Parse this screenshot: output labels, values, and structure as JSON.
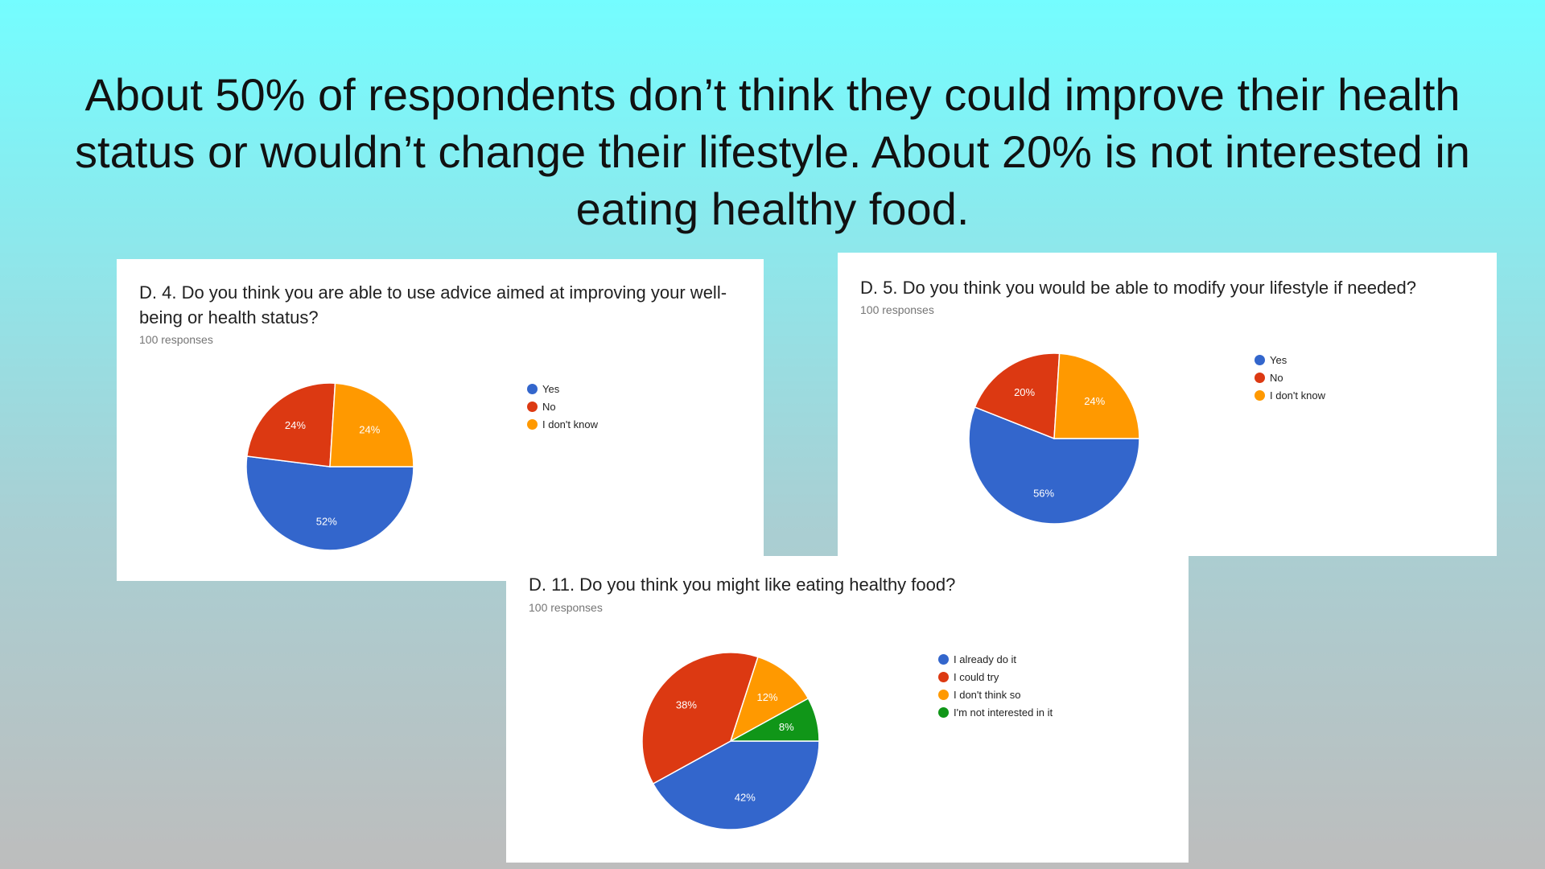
{
  "headline": "About 50% of respondents don’t think they could improve their health status or wouldn’t change their lifestyle. About 20% is not interested in eating healthy food.",
  "chart_data": [
    {
      "type": "pie",
      "title": "D. 4. Do you think you are able to use advice aimed at improving your well-being or health status?",
      "subtitle": "100 responses",
      "categories": [
        "Yes",
        "No",
        "I don't know"
      ],
      "values": [
        52,
        24,
        24
      ],
      "value_labels": [
        "52%",
        "24%",
        "24%"
      ],
      "colors": [
        "#3366cc",
        "#dc3912",
        "#ff9900"
      ],
      "legend": "right"
    },
    {
      "type": "pie",
      "title": "D. 5. Do you think you would be able to modify your lifestyle if needed?",
      "subtitle": "100 responses",
      "categories": [
        "Yes",
        "No",
        "I don't know"
      ],
      "values": [
        56,
        20,
        24
      ],
      "value_labels": [
        "56%",
        "20%",
        "24%"
      ],
      "colors": [
        "#3366cc",
        "#dc3912",
        "#ff9900"
      ],
      "legend": "right"
    },
    {
      "type": "pie",
      "title": "D. 11. Do you think you might like eating healthy food?",
      "subtitle": "100 responses",
      "categories": [
        "I already do it",
        "I could try",
        "I don't think so",
        "I'm not interested in it"
      ],
      "values": [
        42,
        38,
        12,
        8
      ],
      "value_labels": [
        "42%",
        "38%",
        "12%",
        "8%"
      ],
      "colors": [
        "#3366cc",
        "#dc3912",
        "#ff9900",
        "#109618"
      ],
      "legend": "right"
    }
  ]
}
